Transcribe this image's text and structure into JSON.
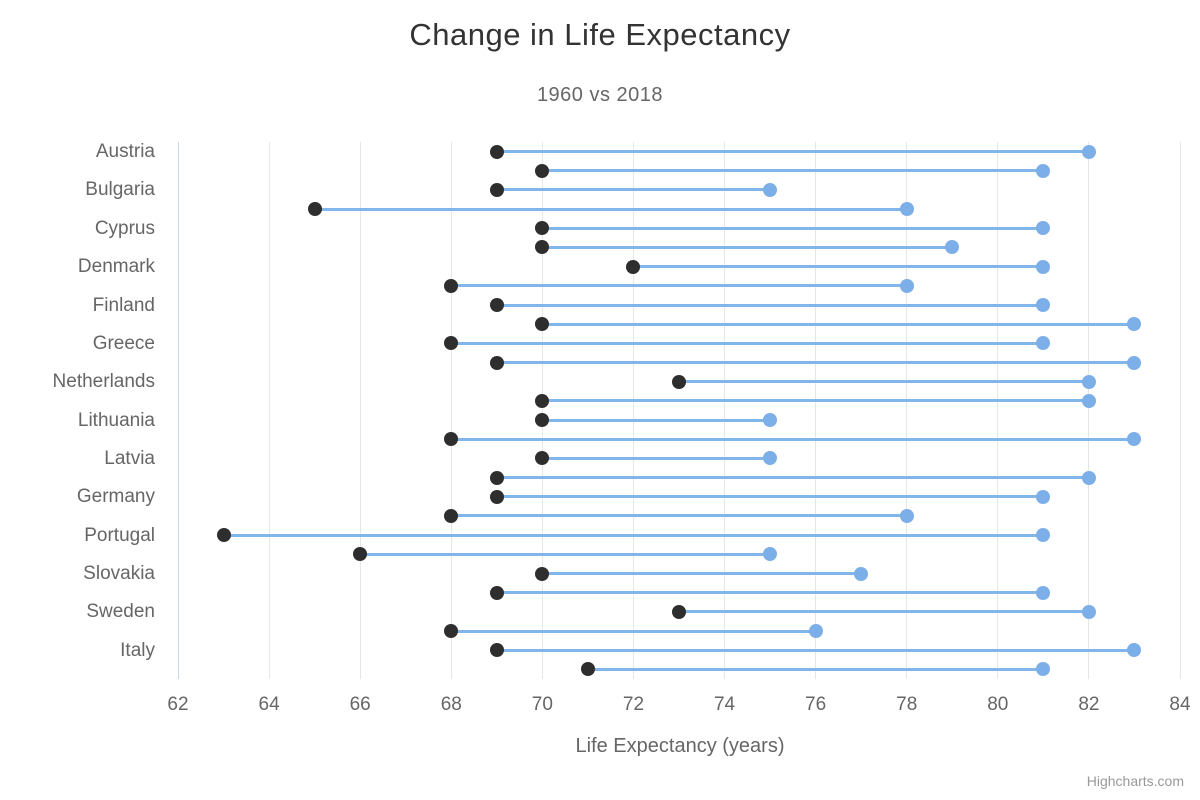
{
  "chart_data": {
    "type": "dumbbell",
    "title": "Change in Life Expectancy",
    "subtitle": "1960 vs 2018",
    "xlabel": "Life Expectancy (years)",
    "xlim": [
      62,
      84
    ],
    "xticks": [
      62,
      64,
      66,
      68,
      70,
      72,
      74,
      76,
      78,
      80,
      82,
      84
    ],
    "grid": true,
    "legend_position": "none",
    "rows": [
      {
        "label": "Austria",
        "low": 69,
        "high": 82
      },
      {
        "label": "",
        "low": 70,
        "high": 81
      },
      {
        "label": "Bulgaria",
        "low": 69,
        "high": 75
      },
      {
        "label": "",
        "low": 65,
        "high": 78
      },
      {
        "label": "Cyprus",
        "low": 70,
        "high": 81
      },
      {
        "label": "",
        "low": 70,
        "high": 79
      },
      {
        "label": "Denmark",
        "low": 72,
        "high": 81
      },
      {
        "label": "",
        "low": 68,
        "high": 78
      },
      {
        "label": "Finland",
        "low": 69,
        "high": 81
      },
      {
        "label": "",
        "low": 70,
        "high": 83
      },
      {
        "label": "Greece",
        "low": 68,
        "high": 81
      },
      {
        "label": "",
        "low": 69,
        "high": 83
      },
      {
        "label": "Netherlands",
        "low": 73,
        "high": 82
      },
      {
        "label": "",
        "low": 70,
        "high": 82
      },
      {
        "label": "Lithuania",
        "low": 70,
        "high": 75
      },
      {
        "label": "",
        "low": 68,
        "high": 83
      },
      {
        "label": "Latvia",
        "low": 70,
        "high": 75
      },
      {
        "label": "",
        "low": 69,
        "high": 82
      },
      {
        "label": "Germany",
        "low": 69,
        "high": 81
      },
      {
        "label": "",
        "low": 68,
        "high": 78
      },
      {
        "label": "Portugal",
        "low": 63,
        "high": 81
      },
      {
        "label": "",
        "low": 66,
        "high": 75
      },
      {
        "label": "Slovakia",
        "low": 70,
        "high": 77
      },
      {
        "label": "",
        "low": 69,
        "high": 81
      },
      {
        "label": "Sweden",
        "low": 73,
        "high": 82
      },
      {
        "label": "",
        "low": 68,
        "high": 76
      },
      {
        "label": "Italy",
        "low": 69,
        "high": 83
      },
      {
        "label": "",
        "low": 71,
        "high": 81
      }
    ]
  },
  "colors": {
    "low_marker": "#2e2e2e",
    "high_marker": "#7cafe8",
    "connector": "#82b5ea",
    "grid_line": "#e6e6e6",
    "axis_line": "#ccd6eb"
  },
  "credits": "Highcharts.com"
}
